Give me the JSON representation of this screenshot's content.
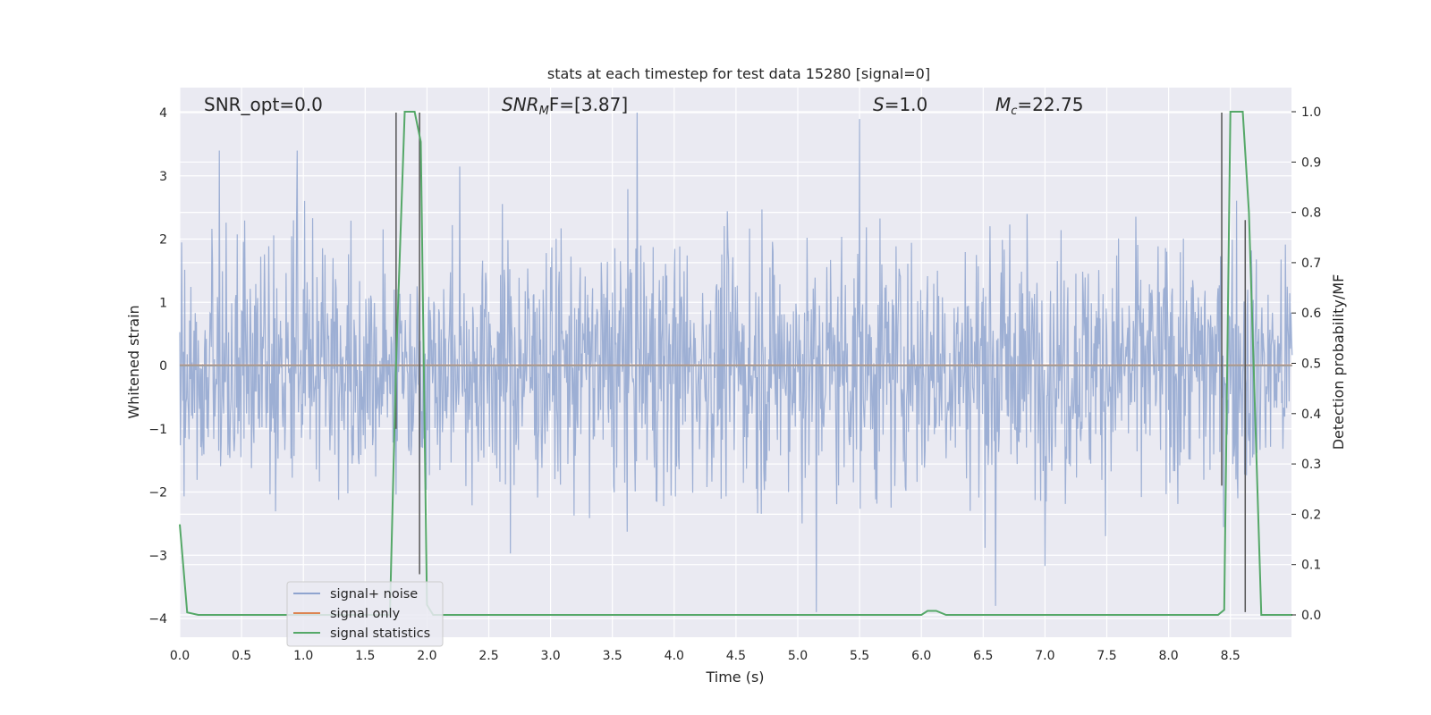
{
  "chart_data": {
    "type": "line",
    "title": "stats at each timestep for test data 15280 [signal=0]",
    "xlabel": "Time (s)",
    "ylabel": "Whitened strain",
    "y2label": "Detection probability/MF",
    "xlim": [
      0.0,
      9.0
    ],
    "ylim": [
      -4.3,
      4.4
    ],
    "y2lim": [
      -0.05,
      1.04
    ],
    "x_ticks": [
      "0.0",
      "0.5",
      "1.0",
      "1.5",
      "2.0",
      "2.5",
      "3.0",
      "3.5",
      "4.0",
      "4.5",
      "5.0",
      "5.5",
      "6.0",
      "6.5",
      "7.0",
      "7.5",
      "8.0",
      "8.5"
    ],
    "y_ticks": [
      "4",
      "3",
      "2",
      "1",
      "0",
      "−1",
      "−2",
      "−3",
      "−4"
    ],
    "y2_ticks": [
      "1.0",
      "0.9",
      "0.8",
      "0.7",
      "0.6",
      "0.5",
      "0.4",
      "0.3",
      "0.2",
      "0.1",
      "0.0"
    ],
    "grid": true,
    "legend_position": "lower-left",
    "annotations": {
      "snr_opt": "SNR_opt=0.0",
      "snr_mf_base": "SNR",
      "snr_mf_sub": "M",
      "snr_mf_tail": "F=[3.87]",
      "s_var": "S",
      "s_tail": "=1.0",
      "mc_var": "M",
      "mc_sub": "c",
      "mc_tail": "=22.75"
    },
    "series": [
      {
        "name": "signal+ noise",
        "color": "#8fa4cf",
        "kind": "noise",
        "sample_rate_hz": 200,
        "typical_band": [
          -1.6,
          1.6
        ],
        "peak_values": [
          [
            0.32,
            3.4
          ],
          [
            0.95,
            3.4
          ],
          [
            3.7,
            4.0
          ],
          [
            5.5,
            3.9
          ],
          [
            5.15,
            -3.9
          ],
          [
            6.6,
            -3.8
          ]
        ]
      },
      {
        "name": "signal only",
        "color": "#dd8452",
        "x": [
          0.0,
          9.0
        ],
        "y": [
          0.0,
          0.0
        ]
      },
      {
        "name": "signal statistics",
        "color": "#55a868",
        "axis": "right",
        "x": [
          0.0,
          0.06,
          0.15,
          1.6,
          1.7,
          1.75,
          1.82,
          1.9,
          1.95,
          2.0,
          2.05,
          2.1,
          5.0,
          5.8,
          6.0,
          6.05,
          6.12,
          6.2,
          6.3,
          8.4,
          8.45,
          8.5,
          8.6,
          8.65,
          8.75,
          8.8,
          9.0
        ],
        "y": [
          0.18,
          0.005,
          0.0,
          0.0,
          0.0,
          0.5,
          1.0,
          1.0,
          0.94,
          0.02,
          0.0,
          0.0,
          0.0,
          0.0,
          0.0,
          0.008,
          0.008,
          0.0,
          0.0,
          0.0,
          0.01,
          1.0,
          1.0,
          0.8,
          0.0,
          0.0,
          0.0
        ]
      }
    ],
    "vertical_markers": [
      {
        "x": 1.75,
        "y_top": 4.0,
        "y_bottom": -1.0
      },
      {
        "x": 1.94,
        "y_top": 4.0,
        "y_bottom": -3.3
      },
      {
        "x": 8.43,
        "y_top": 4.0,
        "y_bottom": -1.9
      },
      {
        "x": 8.62,
        "y_top": 2.3,
        "y_bottom": -3.9
      }
    ]
  }
}
